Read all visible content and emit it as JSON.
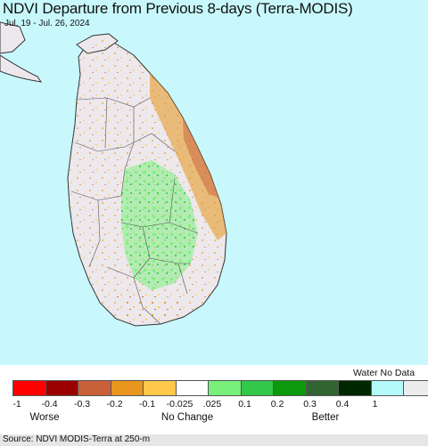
{
  "header": {
    "title": "NDVI Departure from Previous 8-days (Terra-MODIS)",
    "date_range": "Jul. 19 - Jul. 26, 2024"
  },
  "colors": {
    "water": "#c8f8fc",
    "land_neutral": "#ece8ec",
    "boundary": "#555555"
  },
  "legend": {
    "extra_label": "Water No Data",
    "swatch_colors": [
      "#ff0000",
      "#9a0000",
      "#c8603a",
      "#e8961e",
      "#ffc84a",
      "#ffffff",
      "#78f07a",
      "#32c84a",
      "#0a9a0a",
      "#326432",
      "#002800",
      "#b4fafa",
      "#ececec"
    ],
    "tick_labels": [
      "-1",
      "-0.4",
      "-0.3",
      "-0.2",
      "-0.1",
      "-0.025",
      ".025",
      "0.1",
      "0.2",
      "0.3",
      "0.4",
      "1"
    ],
    "annotations": [
      "Worse",
      "No Change",
      "Better"
    ]
  },
  "footer": {
    "source": "Source: NDVI MODIS-Terra at 250-m"
  }
}
